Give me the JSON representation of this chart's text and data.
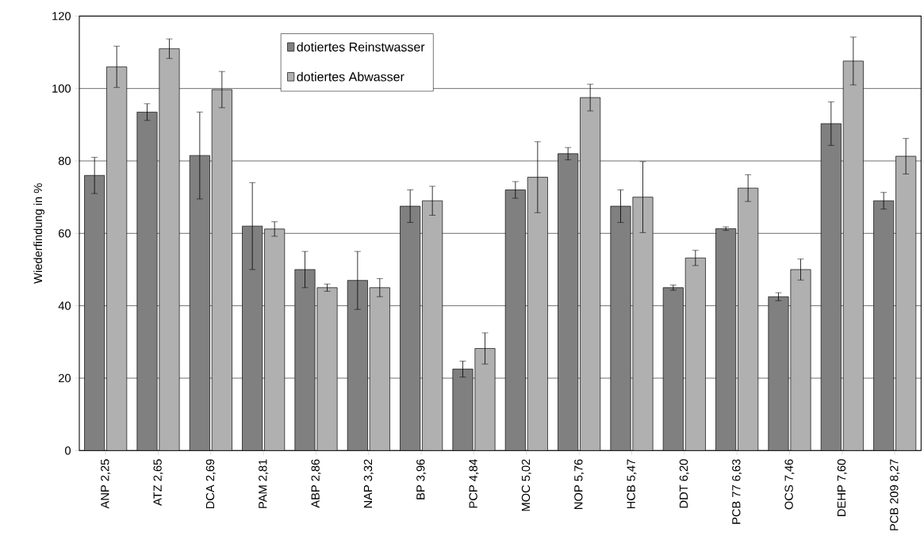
{
  "chart_data": {
    "type": "bar",
    "ylabel": "Wiederfindung in %",
    "categories": [
      "ANP 2,25",
      "ATZ 2,65",
      "DCA 2,69",
      "PAM 2,81",
      "ABP 2,86",
      "NAP 3,32",
      "BP 3,96",
      "PCP 4,84",
      "MOC 5,02",
      "NOP 5,76",
      "HCB 5,47",
      "DDT 6,20",
      "PCB 77 6,63",
      "OCS 7,46",
      "DEHP 7,60",
      "PCB 209 8,27"
    ],
    "series": [
      {
        "name": "dotiertes Reinstwasser",
        "color": "#808080",
        "values": [
          76,
          93.5,
          81.5,
          62,
          50,
          47,
          67.5,
          22.5,
          72,
          82,
          67.5,
          45,
          61.3,
          42.5,
          90.3,
          69
        ],
        "errors": [
          5,
          2.3,
          12,
          12,
          5,
          8,
          4.5,
          2.2,
          2.3,
          1.7,
          4.5,
          0.7,
          0.5,
          1.1,
          6,
          2.3
        ]
      },
      {
        "name": "dotiertes Abwasser",
        "color": "#b0b0b0",
        "values": [
          106,
          111,
          99.7,
          61.2,
          45,
          45,
          69,
          28.2,
          75.5,
          97.5,
          70,
          53.2,
          72.5,
          50,
          107.6,
          81.3
        ],
        "errors": [
          5.7,
          2.7,
          5,
          2,
          1,
          2.5,
          4,
          4.3,
          9.8,
          3.7,
          9.8,
          2.1,
          3.7,
          2.9,
          6.6,
          4.9
        ]
      }
    ],
    "ylim": [
      0,
      120
    ],
    "yticks": [
      0,
      20,
      40,
      60,
      80,
      100,
      120
    ],
    "grid": "y",
    "legend": "top"
  }
}
